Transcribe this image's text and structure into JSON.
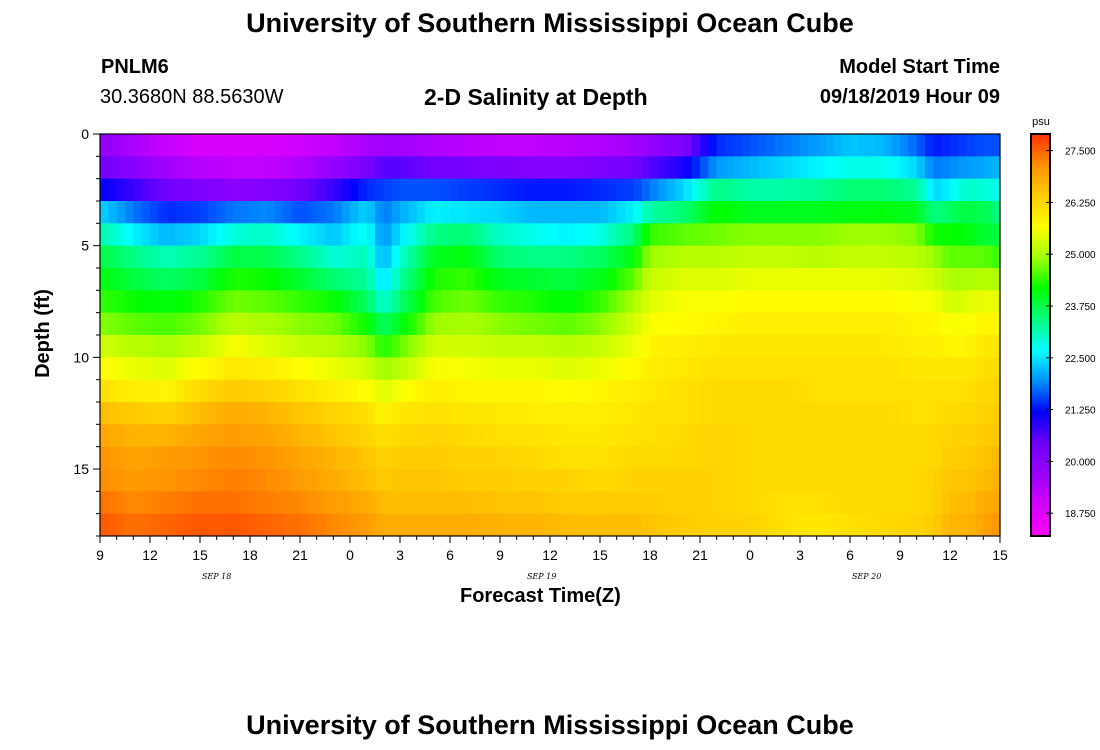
{
  "page": {
    "title": "University of Southern Mississippi Ocean Cube",
    "footer_title": "University of Southern Mississippi Ocean Cube",
    "station_id": "PNLM6",
    "station_coords": "30.3680N 88.5630W",
    "model_start_label": "Model Start Time",
    "model_start_value": "09/18/2019 Hour 09"
  },
  "chart_data": {
    "type": "heatmap",
    "title": "2-D Salinity at Depth",
    "xlabel": "Forecast Time(Z)",
    "ylabel": "Depth (ft)",
    "x_ticks": [
      "9",
      "12",
      "15",
      "18",
      "21",
      "0",
      "3",
      "6",
      "9",
      "12",
      "15",
      "18",
      "21",
      "0",
      "3",
      "6",
      "9",
      "12",
      "15"
    ],
    "x_hours_elapsed_range": [
      0,
      54
    ],
    "date_labels": [
      {
        "label": "SEP 18",
        "hour": 7
      },
      {
        "label": "SEP 19",
        "hour": 26.5
      },
      {
        "label": "SEP 20",
        "hour": 46
      }
    ],
    "y_ticks": [
      "0",
      "5",
      "10",
      "15"
    ],
    "y_tick_values": [
      0,
      5,
      10,
      15
    ],
    "ylim": [
      0,
      18
    ],
    "y_inverted": true,
    "colorbar": {
      "unit": "psu",
      "ticks": [
        "27.500",
        "26.250",
        "25.000",
        "23.750",
        "22.500",
        "21.250",
        "20.000",
        "18.750"
      ],
      "min": 18.2,
      "max": 27.9,
      "colors": [
        "#ff00ff",
        "#d400ff",
        "#9b00ff",
        "#7000ff",
        "#0000ff",
        "#0090ff",
        "#00ffff",
        "#00ff80",
        "#00ff00",
        "#a0ff00",
        "#ffff00",
        "#ffcc00",
        "#ff9000",
        "#ff3000"
      ]
    },
    "grid": false,
    "legend": "colorbar-right",
    "description": "Salinity (psu) vs depth (ft) over forecast hours; values estimated from color scale.",
    "layer_depths_ft": [
      0.5,
      1.5,
      2.5,
      3.5,
      4.5,
      5.5,
      6.5,
      7.5,
      8.5,
      9.5,
      10.5,
      11.5,
      12.5,
      13.5,
      14.5,
      15.5,
      16.5,
      17.5
    ],
    "profile_hours": [
      0,
      2,
      4,
      6,
      8,
      10,
      12,
      14,
      16,
      17,
      18,
      20,
      22,
      24,
      26,
      28,
      30,
      32,
      33,
      35,
      37,
      39,
      41,
      43,
      45,
      47,
      49,
      50,
      51,
      52,
      53,
      54
    ],
    "profiles": [
      [
        19.8,
        20.4,
        21.2,
        22.4,
        23.2,
        23.8,
        24.1,
        24.4,
        24.8,
        25.3,
        25.7,
        26.1,
        26.6,
        26.9,
        27.1,
        27.2,
        27.4,
        27.6
      ],
      [
        19.5,
        20.0,
        20.8,
        21.8,
        22.6,
        23.4,
        23.8,
        24.2,
        24.6,
        25.1,
        25.5,
        25.9,
        26.4,
        26.7,
        26.9,
        27.0,
        27.2,
        27.4
      ],
      [
        19.1,
        19.6,
        20.4,
        21.4,
        22.2,
        23.1,
        23.6,
        24.1,
        24.5,
        25.0,
        25.4,
        25.8,
        26.3,
        26.7,
        27.0,
        27.1,
        27.3,
        27.5
      ],
      [
        18.9,
        19.3,
        20.2,
        21.5,
        22.4,
        23.3,
        23.8,
        24.3,
        24.7,
        25.2,
        25.7,
        26.2,
        26.6,
        26.9,
        27.1,
        27.2,
        27.4,
        27.6
      ],
      [
        18.9,
        19.2,
        20.0,
        21.8,
        22.9,
        23.8,
        24.3,
        24.7,
        25.1,
        25.6,
        26.0,
        26.4,
        26.8,
        27.0,
        27.2,
        27.3,
        27.4,
        27.6
      ],
      [
        18.9,
        19.2,
        20.1,
        21.9,
        23.0,
        23.7,
        24.2,
        24.6,
        25.0,
        25.4,
        25.9,
        26.3,
        26.7,
        26.9,
        27.1,
        27.2,
        27.3,
        27.5
      ],
      [
        19.0,
        19.4,
        20.4,
        21.6,
        22.6,
        23.4,
        23.9,
        24.4,
        24.8,
        25.2,
        25.7,
        26.1,
        26.5,
        26.7,
        26.9,
        27.0,
        27.2,
        27.4
      ],
      [
        19.2,
        19.8,
        20.8,
        21.8,
        22.3,
        22.9,
        23.5,
        24.2,
        24.7,
        25.1,
        25.5,
        25.9,
        26.3,
        26.5,
        26.7,
        26.8,
        27.0,
        27.2
      ],
      [
        19.5,
        20.3,
        21.4,
        22.4,
        22.8,
        23.1,
        23.3,
        23.6,
        24.2,
        24.8,
        25.3,
        25.7,
        26.1,
        26.3,
        26.5,
        26.6,
        26.8,
        27.0
      ],
      [
        19.6,
        20.6,
        21.5,
        21.8,
        21.9,
        22.1,
        22.4,
        22.9,
        23.6,
        24.3,
        24.9,
        25.4,
        25.8,
        26.1,
        26.3,
        26.4,
        26.6,
        26.8
      ],
      [
        19.6,
        20.6,
        21.6,
        22.1,
        22.5,
        22.9,
        23.2,
        23.5,
        24.0,
        24.6,
        25.1,
        25.6,
        26.0,
        26.2,
        26.4,
        26.5,
        26.6,
        26.8
      ],
      [
        19.4,
        20.4,
        21.6,
        22.6,
        23.4,
        24.0,
        24.3,
        24.5,
        24.9,
        25.3,
        25.6,
        25.9,
        26.1,
        26.3,
        26.4,
        26.5,
        26.6,
        26.8
      ],
      [
        19.3,
        20.3,
        21.5,
        22.5,
        23.5,
        24.1,
        24.4,
        24.7,
        25.0,
        25.3,
        25.6,
        25.8,
        26.0,
        26.2,
        26.3,
        26.4,
        26.6,
        26.8
      ],
      [
        19.2,
        20.2,
        21.4,
        22.4,
        23.0,
        23.5,
        24.0,
        24.4,
        24.8,
        25.2,
        25.5,
        25.8,
        26.0,
        26.1,
        26.3,
        26.4,
        26.5,
        26.7
      ],
      [
        19.2,
        20.1,
        21.3,
        22.2,
        22.8,
        23.4,
        23.9,
        24.3,
        24.7,
        25.2,
        25.5,
        25.8,
        25.9,
        26.1,
        26.2,
        26.3,
        26.5,
        26.7
      ],
      [
        19.3,
        20.1,
        21.3,
        22.2,
        22.6,
        23.4,
        23.8,
        24.1,
        24.6,
        25.1,
        25.4,
        25.7,
        25.9,
        26.0,
        26.1,
        26.3,
        26.4,
        26.6
      ],
      [
        19.4,
        20.2,
        21.4,
        22.2,
        22.8,
        23.6,
        24.0,
        24.4,
        24.8,
        25.2,
        25.5,
        25.8,
        25.9,
        26.0,
        26.1,
        26.2,
        26.4,
        26.6
      ],
      [
        19.6,
        20.4,
        21.5,
        22.6,
        23.5,
        24.1,
        24.6,
        25.0,
        25.3,
        25.5,
        25.7,
        25.9,
        26.0,
        26.1,
        26.2,
        26.3,
        26.4,
        26.6
      ],
      [
        19.8,
        20.6,
        21.8,
        23.2,
        24.4,
        24.9,
        25.2,
        25.4,
        25.6,
        25.8,
        25.9,
        26.0,
        26.1,
        26.1,
        26.2,
        26.3,
        26.4,
        26.5
      ],
      [
        20.2,
        21.0,
        22.4,
        23.5,
        24.6,
        25.1,
        25.4,
        25.6,
        25.7,
        25.9,
        26.0,
        26.1,
        26.1,
        26.2,
        26.2,
        26.3,
        26.3,
        26.4
      ],
      [
        21.4,
        22.0,
        23.4,
        24.2,
        24.7,
        25.1,
        25.4,
        25.6,
        25.8,
        26.0,
        26.1,
        26.2,
        26.2,
        26.3,
        26.3,
        26.3,
        26.3,
        26.3
      ],
      [
        21.6,
        22.2,
        23.2,
        24.0,
        24.8,
        25.2,
        25.5,
        25.7,
        25.9,
        26.0,
        26.1,
        26.2,
        26.2,
        26.2,
        26.2,
        26.2,
        26.2,
        26.3
      ],
      [
        21.8,
        22.4,
        23.2,
        24.0,
        24.8,
        25.2,
        25.5,
        25.7,
        25.9,
        26.0,
        26.1,
        26.2,
        26.2,
        26.2,
        26.2,
        26.2,
        26.1,
        26.1
      ],
      [
        22.0,
        22.6,
        23.3,
        24.0,
        24.8,
        25.1,
        25.5,
        25.7,
        25.9,
        26.0,
        26.1,
        26.1,
        26.2,
        26.2,
        26.2,
        26.2,
        26.1,
        26.0
      ],
      [
        22.3,
        22.8,
        23.5,
        24.1,
        24.9,
        25.2,
        25.5,
        25.7,
        25.9,
        26.0,
        26.1,
        26.1,
        26.2,
        26.2,
        26.2,
        26.2,
        26.2,
        26.1
      ],
      [
        22.2,
        22.8,
        23.5,
        24.1,
        24.9,
        25.2,
        25.5,
        25.7,
        25.9,
        26.0,
        26.1,
        26.1,
        26.2,
        26.2,
        26.2,
        26.2,
        26.2,
        26.2
      ],
      [
        21.7,
        22.4,
        23.3,
        24.0,
        24.8,
        25.1,
        25.4,
        25.6,
        25.8,
        25.9,
        26.0,
        26.1,
        26.1,
        26.2,
        26.2,
        26.2,
        26.2,
        26.3
      ],
      [
        21.3,
        21.8,
        22.4,
        23.4,
        24.2,
        24.9,
        25.3,
        25.6,
        25.8,
        25.9,
        26.0,
        26.1,
        26.1,
        26.2,
        26.2,
        26.3,
        26.3,
        26.4
      ],
      [
        21.4,
        21.9,
        22.6,
        23.6,
        24.2,
        24.6,
        25.0,
        25.3,
        25.6,
        25.8,
        26.0,
        26.1,
        26.2,
        26.3,
        26.4,
        26.5,
        26.6,
        26.7
      ],
      [
        21.5,
        22.0,
        23.0,
        23.8,
        24.1,
        24.6,
        25.0,
        25.4,
        25.6,
        25.8,
        26.0,
        26.1,
        26.2,
        26.3,
        26.4,
        26.5,
        26.6,
        26.7
      ],
      [
        21.6,
        22.1,
        22.9,
        23.7,
        23.9,
        24.6,
        25.1,
        25.5,
        25.8,
        26.0,
        26.1,
        26.2,
        26.3,
        26.4,
        26.5,
        26.6,
        26.8,
        26.9
      ],
      [
        21.6,
        22.2,
        22.8,
        23.4,
        23.8,
        24.4,
        25.0,
        25.5,
        25.8,
        26.0,
        26.2,
        26.3,
        26.4,
        26.5,
        26.7,
        26.8,
        26.9,
        27.1
      ]
    ]
  }
}
